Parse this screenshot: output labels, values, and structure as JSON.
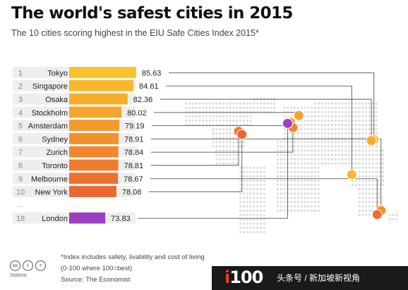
{
  "title": "The world's safest cities in 2015",
  "subtitle": "The 10 cities scoring highest in the EIU Safe Cities Index 2015*",
  "chart_data": {
    "type": "bar",
    "title": "The world's safest cities in 2015",
    "subtitle": "The 10 cities scoring highest in the EIU Safe Cities Index 2015*",
    "rows": [
      {
        "rank": "1",
        "city": "Tokyo",
        "value": 85.63,
        "label": "85.63",
        "color": "#f7c22b"
      },
      {
        "rank": "2",
        "city": "Singapore",
        "value": 84.61,
        "label": "84.61",
        "color": "#f7b82a"
      },
      {
        "rank": "3",
        "city": "Osaka",
        "value": 82.36,
        "label": "82.36",
        "color": "#f6ae2a"
      },
      {
        "rank": "4",
        "city": "Stockholm",
        "value": 80.02,
        "label": "80.02",
        "color": "#f5a42b"
      },
      {
        "rank": "5",
        "city": "Amsterdam",
        "value": 79.19,
        "label": "79.19",
        "color": "#f49a2c"
      },
      {
        "rank": "6",
        "city": "Sydney",
        "value": 78.91,
        "label": "78.91",
        "color": "#f3902d"
      },
      {
        "rank": "7",
        "city": "Zurich",
        "value": 78.84,
        "label": "78.84",
        "color": "#f1862e"
      },
      {
        "rank": "8",
        "city": "Toronto",
        "value": 78.81,
        "label": "78.81",
        "color": "#ef7b2f"
      },
      {
        "rank": "9",
        "city": "Melbourne",
        "value": 78.67,
        "label": "78.67",
        "color": "#ed7130"
      },
      {
        "rank": "10",
        "city": "New York",
        "value": 78.08,
        "label": "78.08",
        "color": "#eb6731"
      },
      {
        "rank": "18",
        "city": "London",
        "value": 73.83,
        "label": "73.83",
        "color": "#9b3fc2"
      }
    ],
    "ellipsis": "...",
    "markers": [
      {
        "city": "Tokyo",
        "lon": 139.7,
        "lat": 35.7,
        "color": "#f7c22b"
      },
      {
        "city": "Singapore",
        "lon": 103.8,
        "lat": 1.35,
        "color": "#f7b82a"
      },
      {
        "city": "Osaka",
        "lon": 135.5,
        "lat": 34.7,
        "color": "#f6ae2a"
      },
      {
        "city": "Stockholm",
        "lon": 18.1,
        "lat": 59.3,
        "color": "#f5a42b"
      },
      {
        "city": "Amsterdam",
        "lon": 4.9,
        "lat": 52.4,
        "color": "#f49a2c"
      },
      {
        "city": "Sydney",
        "lon": 151.2,
        "lat": -33.9,
        "color": "#f3902d"
      },
      {
        "city": "Zurich",
        "lon": 8.5,
        "lat": 47.4,
        "color": "#f1862e"
      },
      {
        "city": "Toronto",
        "lon": -79.4,
        "lat": 43.7,
        "color": "#ef7b2f"
      },
      {
        "city": "Melbourne",
        "lon": 144.96,
        "lat": -37.8,
        "color": "#ed7130"
      },
      {
        "city": "New York",
        "lon": -74.0,
        "lat": 40.7,
        "color": "#eb6731"
      },
      {
        "city": "London",
        "lon": -0.13,
        "lat": 51.5,
        "color": "#9b3fc2"
      }
    ]
  },
  "footnote": {
    "line1": "*Index includes safety, livability and cost of living",
    "line2": "(0-100 where 100=best)"
  },
  "source": "Source: The Economist",
  "cc_label": "Statista",
  "footer": {
    "logo_prefix": "i",
    "logo_rest": "100",
    "watermark": "头条号 / 新加坡新视角"
  }
}
